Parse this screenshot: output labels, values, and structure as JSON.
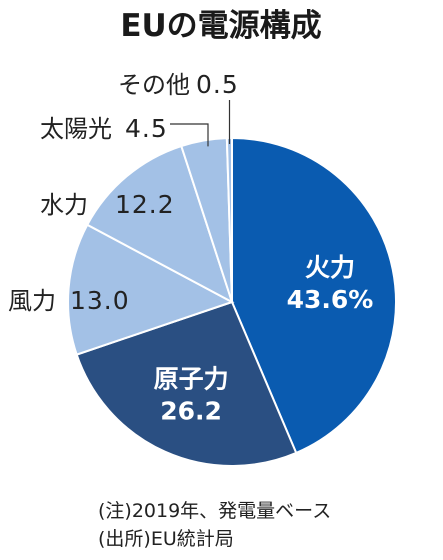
{
  "chart_data": {
    "type": "pie",
    "title": "EUの電源構成",
    "slices": [
      {
        "label": "火力",
        "value": 43.6,
        "value_text": "43.6%",
        "color": "#0a5bb0"
      },
      {
        "label": "原子力",
        "value": 26.2,
        "value_text": "26.2",
        "color": "#2a4f82"
      },
      {
        "label": "風力",
        "value": 13.0,
        "value_text": "13.0",
        "color": "#a3c1e6"
      },
      {
        "label": "水力",
        "value": 12.2,
        "value_text": "12.2",
        "color": "#a3c1e6"
      },
      {
        "label": "太陽光",
        "value": 4.5,
        "value_text": "4.5",
        "color": "#a3c1e6"
      },
      {
        "label": "その他",
        "value": 0.5,
        "value_text": "0.5",
        "color": "#a3c1e6"
      }
    ],
    "notes": [
      "(注)2019年、発電量ベース",
      "(出所)EU統計局"
    ]
  }
}
